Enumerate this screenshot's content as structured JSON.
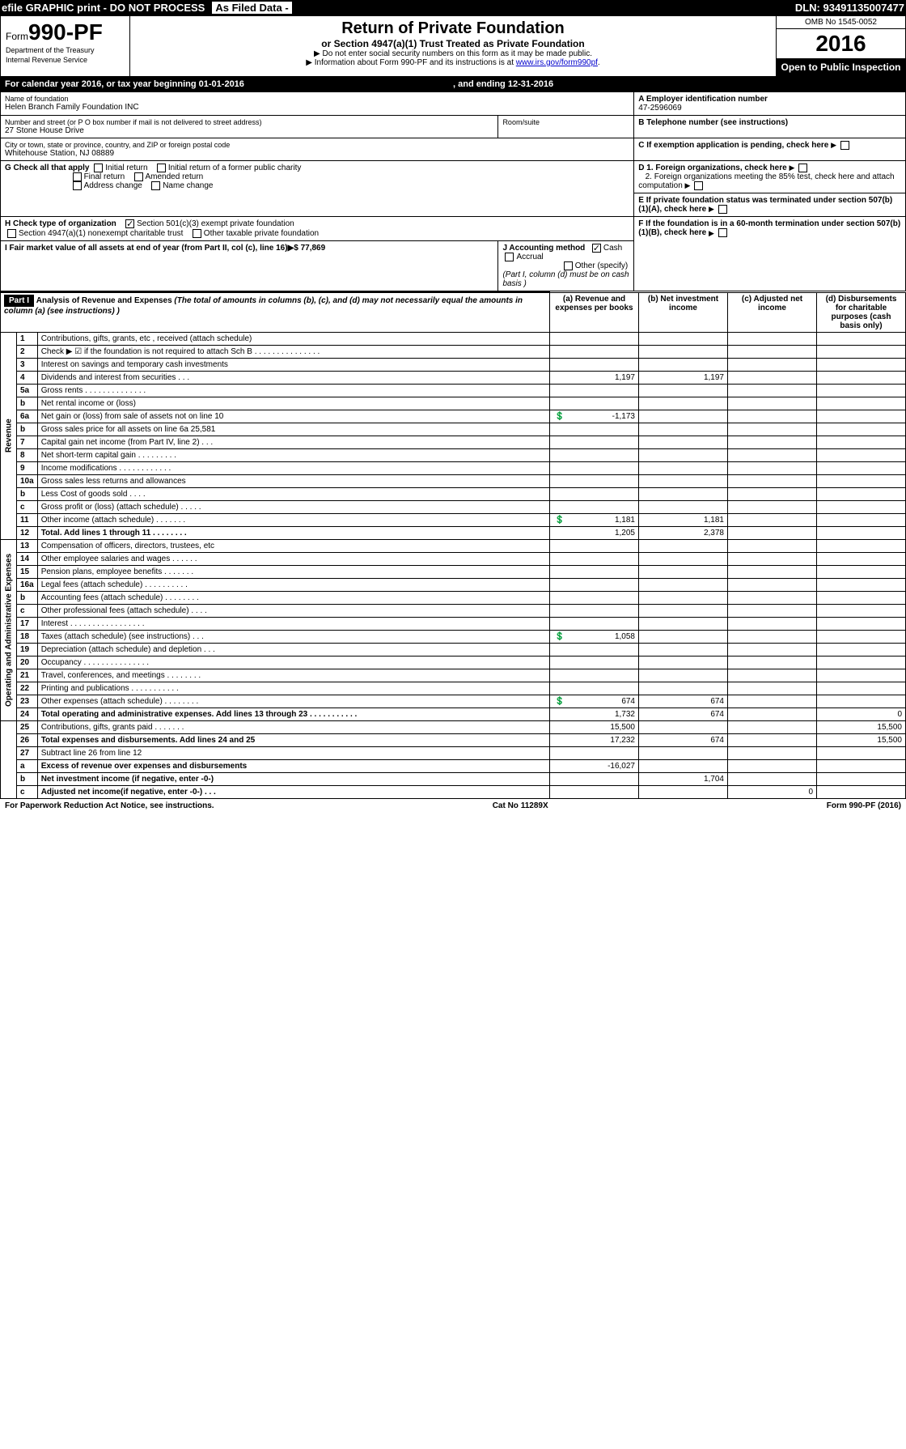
{
  "header": {
    "efile_label": "efile GRAPHIC print - DO NOT PROCESS",
    "as_filed": "As Filed Data -",
    "dln_label": "DLN: 93491135007477"
  },
  "form": {
    "prefix": "Form",
    "number": "990-PF",
    "dept1": "Department of the Treasury",
    "dept2": "Internal Revenue Service",
    "title": "Return of Private Foundation",
    "subtitle": "or Section 4947(a)(1) Trust Treated as Private Foundation",
    "instr1": "▶ Do not enter social security numbers on this form as it may be made public.",
    "instr2_prefix": "▶ Information about Form 990-PF and its instructions is at ",
    "instr2_url": "www.irs.gov/form990pf",
    "omb": "OMB No 1545-0052",
    "year": "2016",
    "inspection": "Open to Public Inspection"
  },
  "cal": {
    "text": "For calendar year 2016, or tax year beginning 01-01-2016",
    "ending_label": ", and ending 12-31-2016"
  },
  "entity": {
    "name_label": "Name of foundation",
    "name": "Helen Branch Family Foundation INC",
    "addr_label": "Number and street (or P O  box number if mail is not delivered to street address)",
    "room_label": "Room/suite",
    "addr": "27 Stone House Drive",
    "city_label": "City or town, state or province, country, and ZIP or foreign postal code",
    "city": "Whitehouse Station, NJ  08889",
    "ein_label": "A Employer identification number",
    "ein": "47-2596069",
    "phone_label": "B Telephone number (see instructions)",
    "c_label": "C If exemption application is pending, check here",
    "d1": "D 1. Foreign organizations, check here",
    "d2": "2. Foreign organizations meeting the 85% test, check here and attach computation",
    "e": "E  If private foundation status was terminated under section 507(b)(1)(A), check here",
    "f": "F  If the foundation is in a 60-month termination under section 507(b)(1)(B), check here"
  },
  "checks": {
    "g_label": "G Check all that apply",
    "initial": "Initial return",
    "initial_former": "Initial return of a former public charity",
    "final": "Final return",
    "amended": "Amended return",
    "addr_change": "Address change",
    "name_change": "Name change",
    "h_label": "H Check type of organization",
    "h1": "Section 501(c)(3) exempt private foundation",
    "h2": "Section 4947(a)(1) nonexempt charitable trust",
    "h3": "Other taxable private foundation",
    "i_label": "I Fair market value of all assets at end of year (from Part II, col  (c), line 16)▶$  77,869",
    "j_label": "J Accounting method",
    "cash": "Cash",
    "accrual": "Accrual",
    "other": "Other (specify)",
    "j_note": "(Part I, column (d) must be on cash basis )"
  },
  "part1": {
    "header": "Part I",
    "title": "Analysis of Revenue and Expenses",
    "title_note": " (The total of amounts in columns (b), (c), and (d) may not necessarily equal the amounts in column (a) (see instructions) )",
    "col_a": "(a)  Revenue and expenses per books",
    "col_b": "(b) Net investment income",
    "col_c": "(c) Adjusted net income",
    "col_d": "(d) Disbursements for charitable purposes (cash basis only)",
    "revenue_label": "Revenue",
    "expenses_label": "Operating and Administrative Expenses"
  },
  "rows": [
    {
      "n": "1",
      "t": "Contributions, gifts, grants, etc , received (attach schedule)"
    },
    {
      "n": "2",
      "t": "Check ▶ ☑ if the foundation is not required to attach Sch  B   . . . . . . . . . . . . . . ."
    },
    {
      "n": "3",
      "t": "Interest on savings and temporary cash investments"
    },
    {
      "n": "4",
      "t": "Dividends and interest from securities   . . .",
      "a": "1,197",
      "b": "1,197"
    },
    {
      "n": "5a",
      "t": "Gross rents  . . . . . . . . . . . . . ."
    },
    {
      "n": "b",
      "t": "Net rental income or (loss)"
    },
    {
      "n": "6a",
      "t": "Net gain or (loss) from sale of assets not on line 10",
      "a": "-1,173",
      "icon": true
    },
    {
      "n": "b",
      "t": "Gross sales price for all assets on line 6a          25,581"
    },
    {
      "n": "7",
      "t": "Capital gain net income (from Part IV, line 2)  . . ."
    },
    {
      "n": "8",
      "t": "Net short-term capital gain  . . . . . . . . ."
    },
    {
      "n": "9",
      "t": "Income modifications . . . . . . . . . . . ."
    },
    {
      "n": "10a",
      "t": "Gross sales less returns and allowances"
    },
    {
      "n": "b",
      "t": "Less  Cost of goods sold   . . . ."
    },
    {
      "n": "c",
      "t": "Gross profit or (loss) (attach schedule)  . . . . ."
    },
    {
      "n": "11",
      "t": "Other income (attach schedule)   . . . . . . .",
      "a": "1,181",
      "b": "1,181",
      "icon": true
    },
    {
      "n": "12",
      "t": "Total. Add lines 1 through 11   . . . . . . . .",
      "a": "1,205",
      "b": "2,378",
      "bold": true
    },
    {
      "n": "13",
      "t": "Compensation of officers, directors, trustees, etc"
    },
    {
      "n": "14",
      "t": "Other employee salaries and wages   . . . . . ."
    },
    {
      "n": "15",
      "t": "Pension plans, employee benefits  . . . . . . ."
    },
    {
      "n": "16a",
      "t": "Legal fees (attach schedule) . . . . . . . . . ."
    },
    {
      "n": "b",
      "t": "Accounting fees (attach schedule) . . . . . . . ."
    },
    {
      "n": "c",
      "t": "Other professional fees (attach schedule)   . . . ."
    },
    {
      "n": "17",
      "t": "Interest  . . . . . . . . . . . . . . . . ."
    },
    {
      "n": "18",
      "t": "Taxes (attach schedule) (see instructions)    . . .",
      "a": "1,058",
      "icon": true
    },
    {
      "n": "19",
      "t": "Depreciation (attach schedule) and depletion   . . ."
    },
    {
      "n": "20",
      "t": "Occupancy   . . . . . . . . . . . . . . ."
    },
    {
      "n": "21",
      "t": "Travel, conferences, and meetings . . . . . . . ."
    },
    {
      "n": "22",
      "t": "Printing and publications . . . . . . . . . . ."
    },
    {
      "n": "23",
      "t": "Other expenses (attach schedule) . . . . . . . .",
      "a": "674",
      "b": "674",
      "icon": true
    },
    {
      "n": "24",
      "t": "Total operating and administrative expenses. Add lines 13 through 23  . . . . . . . . . . .",
      "a": "1,732",
      "b": "674",
      "d": "0",
      "bold": true
    },
    {
      "n": "25",
      "t": "Contributions, gifts, grants paid    . . . . . . .",
      "a": "15,500",
      "d": "15,500"
    },
    {
      "n": "26",
      "t": "Total expenses and disbursements. Add lines 24 and 25",
      "a": "17,232",
      "b": "674",
      "d": "15,500",
      "bold": true
    },
    {
      "n": "27",
      "t": "Subtract line 26 from line 12"
    },
    {
      "n": "a",
      "t": "Excess of revenue over expenses and disbursements",
      "a": "-16,027",
      "bold": true
    },
    {
      "n": "b",
      "t": "Net investment income (if negative, enter -0-)",
      "b": "1,704",
      "bold": true
    },
    {
      "n": "c",
      "t": "Adjusted net income(if negative, enter -0-)  . . .",
      "c": "0",
      "bold": true
    }
  ],
  "footer": {
    "paperwork": "For Paperwork Reduction Act Notice, see instructions.",
    "cat": "Cat  No  11289X",
    "form": "Form 990-PF (2016)"
  }
}
